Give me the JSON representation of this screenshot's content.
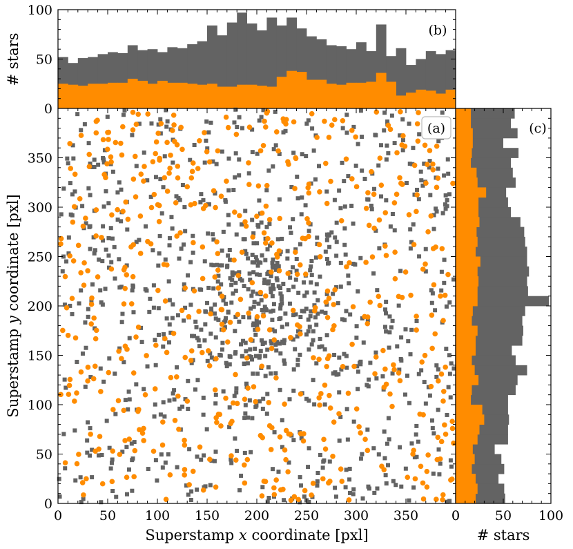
{
  "chart_data": [
    {
      "panel": "(a)",
      "type": "scatter",
      "xlabel_parts": [
        "Superstamp ",
        "x",
        " coordinate [pxl]"
      ],
      "ylabel_parts": [
        "Superstamp ",
        "y",
        " coordinate [pxl]"
      ],
      "xlim": [
        0,
        400
      ],
      "ylim": [
        0,
        400
      ],
      "xticks": [
        "0",
        "50",
        "100",
        "150",
        "200",
        "250",
        "300",
        "350",
        "0"
      ],
      "yticks": [
        "0",
        "50",
        "100",
        "150",
        "200",
        "250",
        "300",
        "350"
      ],
      "series": [
        {
          "marker": "square",
          "color": "#636363",
          "count": 1020,
          "concentration": {
            "x": 205,
            "y": 205
          }
        },
        {
          "marker": "circle",
          "color": "#ff8c00",
          "count": 560
        }
      ]
    },
    {
      "panel": "(b)",
      "type": "bar",
      "ylabel": "# stars",
      "xlim": [
        0,
        400
      ],
      "ylim": [
        0,
        100
      ],
      "yticks": [
        "0",
        "50",
        "100"
      ],
      "bin_width": 10,
      "gray_totals": [
        52,
        46,
        51,
        52,
        55,
        57,
        56,
        64,
        59,
        60,
        57,
        62,
        61,
        65,
        68,
        84,
        74,
        87,
        97,
        86,
        79,
        92,
        84,
        92,
        81,
        73,
        70,
        64,
        63,
        60,
        67,
        58,
        85,
        53,
        61,
        44,
        50,
        58,
        55,
        59
      ],
      "orange": [
        25,
        24,
        23,
        25,
        25,
        26,
        26,
        30,
        28,
        25,
        28,
        26,
        26,
        25,
        24,
        25,
        22,
        22,
        24,
        24,
        23,
        22,
        32,
        38,
        37,
        29,
        29,
        25,
        24,
        26,
        26,
        27,
        36,
        27,
        13,
        16,
        19,
        18,
        15,
        19
      ]
    },
    {
      "panel": "(c)",
      "type": "bar",
      "orientation": "horizontal",
      "xlabel": "# stars",
      "xlim": [
        0,
        100
      ],
      "ylim": [
        0,
        400
      ],
      "xticks": [
        "0",
        "50",
        "100"
      ],
      "bin_width": 10,
      "gray_totals": [
        52,
        51,
        45,
        51,
        48,
        41,
        55,
        55,
        56,
        55,
        55,
        63,
        65,
        75,
        63,
        59,
        70,
        71,
        70,
        73,
        98,
        76,
        75,
        77,
        75,
        75,
        73,
        72,
        68,
        58,
        55,
        53,
        63,
        60,
        58,
        66,
        50,
        65,
        58,
        62
      ],
      "orange": [
        21,
        23,
        21,
        17,
        20,
        18,
        23,
        25,
        30,
        28,
        16,
        17,
        24,
        20,
        17,
        21,
        21,
        23,
        17,
        18,
        23,
        23,
        24,
        23,
        26,
        21,
        23,
        22,
        25,
        24,
        24,
        32,
        23,
        22,
        16,
        17,
        18,
        18,
        16,
        16
      ]
    }
  ]
}
